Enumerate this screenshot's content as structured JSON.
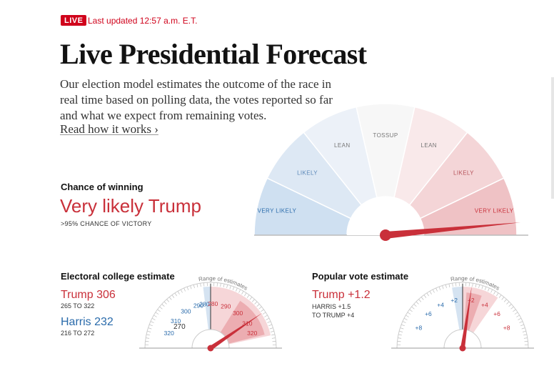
{
  "header": {
    "live_badge": "LIVE",
    "updated": "Last updated 12:57 a.m. E.T.",
    "title": "Live Presidential Forecast",
    "intro": "Our election model estimates the outcome of the race in real time based on polling data, the votes reported so far and what we expect from remaining votes.",
    "read_link": "Read how it works ›"
  },
  "chance_of_winning": {
    "label": "Chance of winning",
    "value": "Very likely Trump",
    "sub": ">95% CHANCE OF VICTORY",
    "segments": [
      "VERY LIKELY",
      "LIKELY",
      "LEAN",
      "TOSSUP",
      "LEAN",
      "LIKELY",
      "VERY LIKELY"
    ],
    "trump_probability": 0.97
  },
  "electoral": {
    "title": "Electoral college estimate",
    "trump": "Trump 306",
    "trump_range": "265 TO 322",
    "harris": "Harris 232",
    "harris_range": "216 TO 272",
    "range_label": "Range of estimates",
    "ticks_left": [
      "320",
      "310",
      "300",
      "290",
      "280"
    ],
    "ticks_right": [
      "280",
      "290",
      "300",
      "310",
      "320"
    ],
    "center_label": "270",
    "estimate": 306
  },
  "popular": {
    "title": "Popular vote estimate",
    "trump": "Trump +1.2",
    "harris_line": "HARRIS +1.5",
    "trump_line": "TO TRUMP +4",
    "range_label": "Range of estimates",
    "ticks_left": [
      "+8",
      "+6",
      "+4",
      "+2"
    ],
    "ticks_right": [
      "+2",
      "+4",
      "+6",
      "+8"
    ],
    "estimate": 1.2
  },
  "colors": {
    "accent_red": "#d0021b",
    "trump_red": "#c9303a",
    "harris_blue": "#2a6bab"
  }
}
